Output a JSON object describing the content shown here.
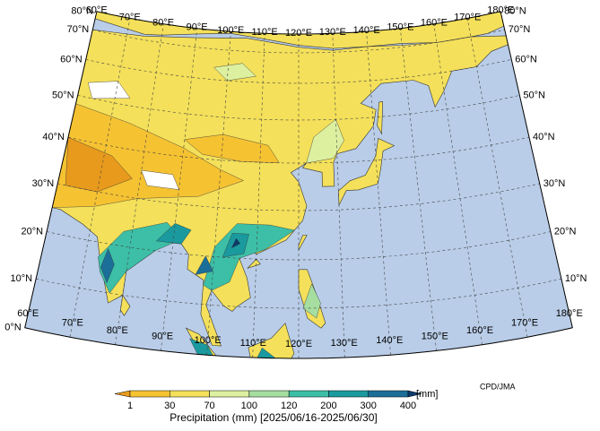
{
  "map": {
    "lon_labels": [
      "60°E",
      "70°E",
      "80°E",
      "90°E",
      "100°E",
      "110°E",
      "120°E",
      "130°E",
      "140°E",
      "150°E",
      "160°E",
      "170°E",
      "180°E"
    ],
    "lat_labels": [
      "0°N",
      "10°N",
      "20°N",
      "30°N",
      "40°N",
      "50°N",
      "60°N",
      "70°N",
      "80°N"
    ]
  },
  "colorbar": {
    "ticks": [
      1,
      30,
      70,
      100,
      120,
      200,
      300,
      400
    ],
    "colors": [
      "#e89a1c",
      "#f5c232",
      "#f4e05a",
      "#dcf0a0",
      "#a6dea0",
      "#3cbfa6",
      "#1a9a9e",
      "#1b6e98",
      "#0b3a6a"
    ],
    "unit": "[mm]",
    "title": "Precipitation (mm) [2025/06/16-2025/06/30]"
  },
  "credit": "CPD/JMA"
}
